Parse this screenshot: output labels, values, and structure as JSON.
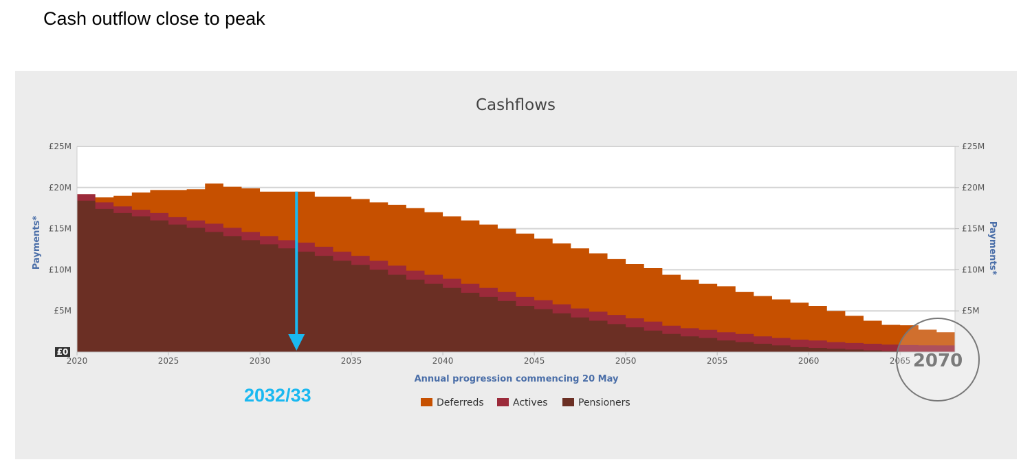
{
  "slide": {
    "title": "Cash outflow close to peak"
  },
  "annotations": {
    "arrow_label": "2032/33",
    "arrow_year": 2032,
    "arrow_color": "#1ab8f0",
    "lens_label": "2070"
  },
  "chart_data": {
    "type": "area",
    "title": "Cashflows",
    "xlabel": "Annual progression commencing 20 May",
    "ylabel": "Payments*",
    "ylabel_right": "Payments*",
    "ylim": [
      0,
      25
    ],
    "xlim": [
      2020,
      2068
    ],
    "y_ticks": [
      "£0",
      "£5M",
      "£10M",
      "£15M",
      "£20M",
      "£25M"
    ],
    "x_ticks": [
      "2020",
      "2025",
      "2030",
      "2035",
      "2040",
      "2045",
      "2050",
      "2055",
      "2060",
      "2065"
    ],
    "grid": true,
    "stacked": true,
    "step": true,
    "legend_position": "bottom",
    "x": [
      2020,
      2021,
      2022,
      2023,
      2024,
      2025,
      2026,
      2027,
      2028,
      2029,
      2030,
      2031,
      2032,
      2033,
      2034,
      2035,
      2036,
      2037,
      2038,
      2039,
      2040,
      2041,
      2042,
      2043,
      2044,
      2045,
      2046,
      2047,
      2048,
      2049,
      2050,
      2051,
      2052,
      2053,
      2054,
      2055,
      2056,
      2057,
      2058,
      2059,
      2060,
      2061,
      2062,
      2063,
      2064,
      2065,
      2066,
      2067
    ],
    "series": [
      {
        "name": "Pensioners",
        "color": "#6b2f24",
        "values": [
          18.4,
          17.4,
          16.9,
          16.5,
          16.0,
          15.5,
          15.1,
          14.6,
          14.1,
          13.6,
          13.1,
          12.6,
          12.2,
          11.7,
          11.1,
          10.6,
          10.0,
          9.4,
          8.8,
          8.3,
          7.8,
          7.2,
          6.7,
          6.2,
          5.6,
          5.2,
          4.7,
          4.2,
          3.8,
          3.4,
          3.0,
          2.6,
          2.2,
          1.9,
          1.7,
          1.4,
          1.2,
          1.0,
          0.8,
          0.6,
          0.5,
          0.4,
          0.3,
          0.2,
          0.1,
          0.05,
          0.02,
          0.0
        ]
      },
      {
        "name": "Actives",
        "color": "#9b2a3a",
        "values": [
          0.8,
          0.8,
          0.8,
          0.8,
          0.9,
          0.9,
          0.9,
          1.0,
          1.0,
          1.0,
          1.0,
          1.0,
          1.1,
          1.1,
          1.1,
          1.1,
          1.1,
          1.1,
          1.1,
          1.1,
          1.1,
          1.1,
          1.1,
          1.1,
          1.1,
          1.1,
          1.1,
          1.1,
          1.1,
          1.1,
          1.1,
          1.1,
          1.0,
          1.0,
          1.0,
          1.0,
          1.0,
          0.9,
          0.9,
          0.9,
          0.9,
          0.8,
          0.8,
          0.8,
          0.8,
          0.8,
          0.8,
          0.8
        ]
      },
      {
        "name": "Deferreds",
        "color": "#c65000",
        "values": [
          0.0,
          0.6,
          1.3,
          2.1,
          2.8,
          3.3,
          3.8,
          4.9,
          5.0,
          5.3,
          5.4,
          5.9,
          6.2,
          6.1,
          6.7,
          6.9,
          7.1,
          7.4,
          7.6,
          7.6,
          7.6,
          7.7,
          7.7,
          7.7,
          7.7,
          7.5,
          7.4,
          7.3,
          7.1,
          6.8,
          6.6,
          6.5,
          6.2,
          5.9,
          5.6,
          5.6,
          5.1,
          4.9,
          4.7,
          4.5,
          4.2,
          3.8,
          3.3,
          2.8,
          2.4,
          2.4,
          1.9,
          1.6
        ]
      }
    ],
    "legend_order": [
      "Deferreds",
      "Actives",
      "Pensioners"
    ],
    "legend": {
      "Deferreds": "Deferreds",
      "Actives": "Actives",
      "Pensioners": "Pensioners"
    }
  }
}
